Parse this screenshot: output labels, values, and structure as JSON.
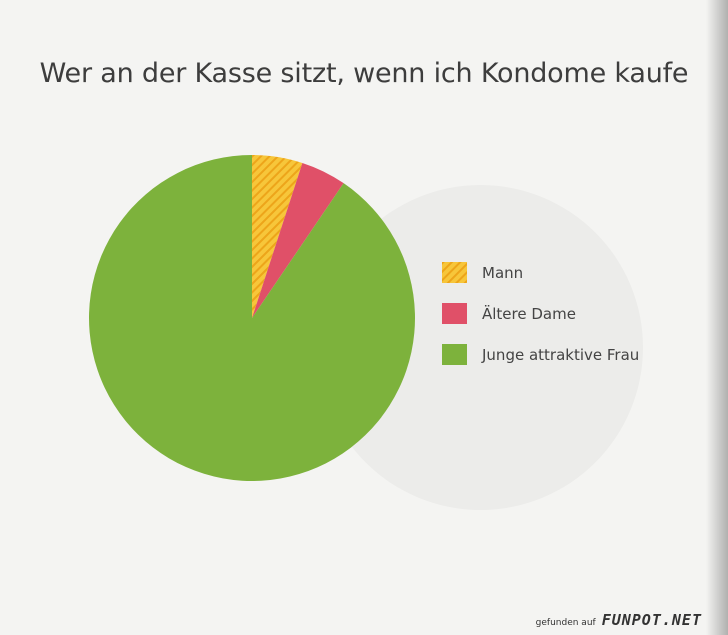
{
  "chart_data": {
    "type": "pie",
    "title": "Wer an der Kasse sitzt, wenn ich Kondome kaufe",
    "slices": [
      {
        "label": "Mann",
        "value": 5,
        "color": "#f4b523",
        "pattern": "hatched"
      },
      {
        "label": "Ältere Dame",
        "value": 4.5,
        "color": "#e05068"
      },
      {
        "label": "Junge attraktive Frau",
        "value": 90.5,
        "color": "#7db23c"
      }
    ],
    "start_angle": "12 o'clock",
    "direction": "clockwise",
    "legend_position": "right"
  },
  "watermark": {
    "prefix": "gefunden auf",
    "brand": "FUNPOT.NET"
  }
}
